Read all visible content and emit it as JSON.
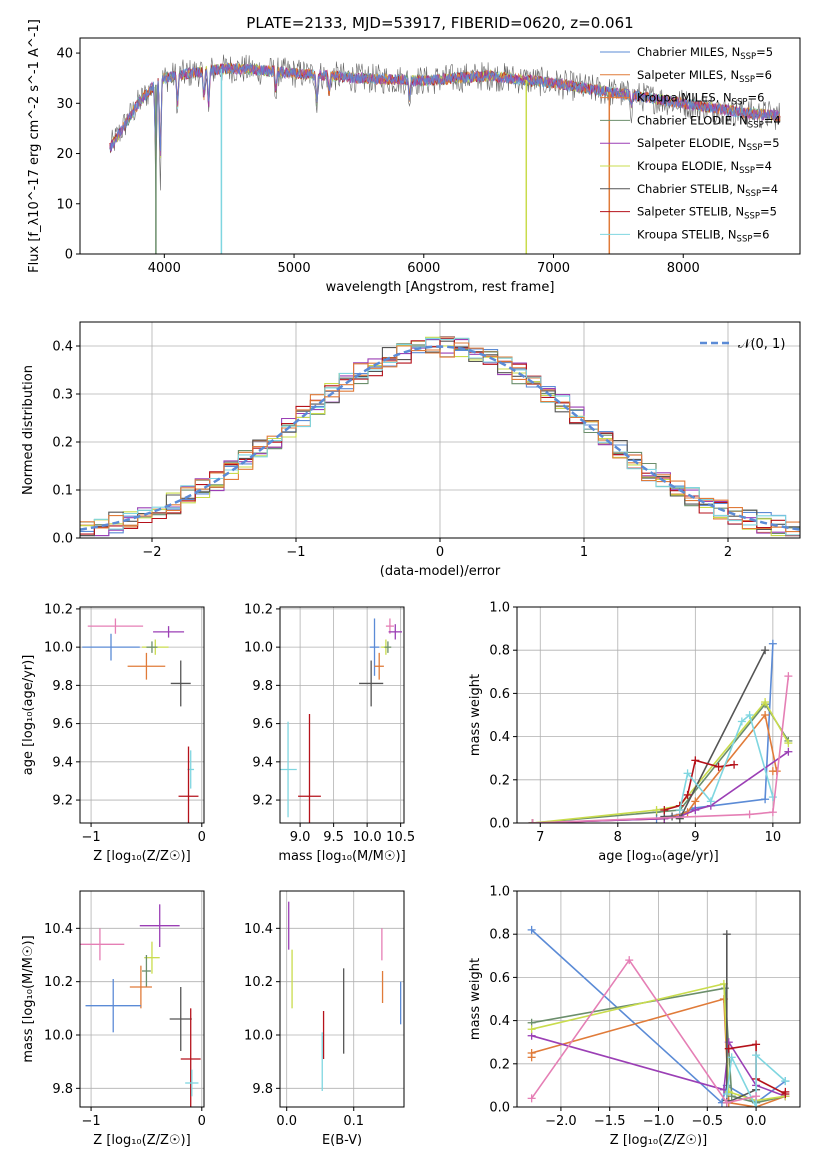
{
  "figure": {
    "title": "PLATE=2133, MJD=53917, FIBERID=0620, z=0.061"
  },
  "colors": {
    "cMILES": "#5b8bd6",
    "sMILES": "#e07b39",
    "kMILES": "#f5a35c",
    "cELODIE": "#6b8e6b",
    "sELODIE": "#9b3fb5",
    "kELODIE": "#c9dc4c",
    "cSTELIB": "#555555",
    "sSTELIB": "#b5121b",
    "kSTELIB": "#7fd6e0",
    "pink": "#e57fb5",
    "blue": "#5b8bd6",
    "orange": "#e07b39",
    "green": "#6b8e6b",
    "purple": "#9b3fb5",
    "yellowgreen": "#c9dc4c",
    "grey": "#555555",
    "red": "#b5121b",
    "cyan": "#7fd6e0"
  },
  "chart_data": [
    {
      "id": "spectrum",
      "type": "line",
      "xlabel": "wavelength [Angstrom, rest frame]",
      "ylabel": "Flux [f_λ10^-17 erg cm^-2 s^-1 A^-1]",
      "xlim": [
        3350,
        8900
      ],
      "ylim": [
        0,
        43
      ],
      "xticks": [
        4000,
        5000,
        6000,
        7000,
        8000
      ],
      "yticks": [
        0,
        10,
        20,
        30,
        40
      ],
      "grid": false,
      "legend_position": "top-right",
      "legend": [
        {
          "label": "Chabrier MILES, N",
          "sub": "SSP",
          "tail": "=5",
          "color": "#5b8bd6"
        },
        {
          "label": "Salpeter MILES, N",
          "sub": "SSP",
          "tail": "=6",
          "color": "#e07b39"
        },
        {
          "label": "Kroupa MILES, N",
          "sub": "SSP",
          "tail": "=6",
          "color": "#e07b39"
        },
        {
          "label": "Chabrier ELODIE, N",
          "sub": "SSP",
          "tail": "=4",
          "color": "#6b8e6b"
        },
        {
          "label": "Salpeter ELODIE, N",
          "sub": "SSP",
          "tail": "=5",
          "color": "#9b3fb5"
        },
        {
          "label": "Kroupa ELODIE, N",
          "sub": "SSP",
          "tail": "=4",
          "color": "#c9dc4c"
        },
        {
          "label": "Chabrier STELIB, N",
          "sub": "SSP",
          "tail": "=4",
          "color": "#555555"
        },
        {
          "label": "Salpeter STELIB, N",
          "sub": "SSP",
          "tail": "=5",
          "color": "#b5121b"
        },
        {
          "label": "Kroupa STELIB, N",
          "sub": "SSP",
          "tail": "=6",
          "color": "#7fd6e0"
        }
      ],
      "continuum": [
        [
          3580,
          21
        ],
        [
          3700,
          26
        ],
        [
          3800,
          30
        ],
        [
          3900,
          33
        ],
        [
          4000,
          35
        ],
        [
          4200,
          36
        ],
        [
          4500,
          37
        ],
        [
          5000,
          36
        ],
        [
          5500,
          35
        ],
        [
          6000,
          34.5
        ],
        [
          6500,
          35.5
        ],
        [
          7000,
          34
        ],
        [
          7500,
          32
        ],
        [
          8000,
          30
        ],
        [
          8500,
          28
        ],
        [
          8750,
          27.5
        ]
      ],
      "absorption_lines": [
        [
          3934,
          20
        ],
        [
          3969,
          22
        ],
        [
          4102,
          8
        ],
        [
          4304,
          8
        ],
        [
          4341,
          10
        ],
        [
          4861,
          6
        ],
        [
          5175,
          8
        ],
        [
          5270,
          5
        ],
        [
          5890,
          5
        ],
        [
          7600,
          3
        ]
      ],
      "spikes": [
        [
          3935,
          0
        ],
        [
          4440,
          0
        ],
        [
          6790,
          0
        ],
        [
          7430,
          0
        ]
      ]
    },
    {
      "id": "residuals",
      "type": "line",
      "xlabel": "(data-model)/error",
      "ylabel": "Normed distribution",
      "xlim": [
        -2.5,
        2.5
      ],
      "ylim": [
        0,
        0.45
      ],
      "xticks": [
        -2,
        -1,
        0,
        1,
        2
      ],
      "yticks": [
        0,
        0.1,
        0.2,
        0.3,
        0.4
      ],
      "grid": true,
      "legend_position": "top-right",
      "legend": [
        {
          "label": "𝒩(0, 1)",
          "color": "#5b8bd6"
        }
      ],
      "series_colors": [
        "#5b8bd6",
        "#e07b39",
        "#6b8e6b",
        "#9b3fb5",
        "#c9dc4c",
        "#555555",
        "#b5121b",
        "#7fd6e0",
        "#e07b39"
      ],
      "bin_width": 0.1
    },
    {
      "id": "age_vs_Z",
      "type": "scatter",
      "xlabel": "Z [log₁₀(Z/Z☉)]",
      "ylabel": "age  [log₁₀(age/yr)]",
      "xlim": [
        -1.1,
        0.02
      ],
      "ylim": [
        9.08,
        10.21
      ],
      "xticks": [
        -1,
        0
      ],
      "yticks": [
        9.2,
        9.4,
        9.6,
        9.8,
        10.0,
        10.2
      ],
      "grid": true,
      "points": [
        {
          "x": -0.78,
          "y": 10.11,
          "xerr": 0.25,
          "yerr": 0.04,
          "color": "#e57fb5"
        },
        {
          "x": -0.82,
          "y": 10.0,
          "xerr": 0.26,
          "yerr": 0.07,
          "color": "#5b8bd6"
        },
        {
          "x": -0.3,
          "y": 10.08,
          "xerr": 0.14,
          "yerr": 0.03,
          "color": "#9b3fb5"
        },
        {
          "x": -0.42,
          "y": 10.0,
          "xerr": 0.12,
          "yerr": 0.04,
          "color": "#c9dc4c"
        },
        {
          "x": -0.45,
          "y": 10.0,
          "xerr": 0.05,
          "yerr": 0.03,
          "color": "#6b8e6b"
        },
        {
          "x": -0.5,
          "y": 9.9,
          "xerr": 0.17,
          "yerr": 0.07,
          "color": "#e07b39"
        },
        {
          "x": -0.19,
          "y": 9.81,
          "xerr": 0.09,
          "yerr": 0.12,
          "color": "#555555"
        },
        {
          "x": -0.1,
          "y": 9.36,
          "xerr": 0.03,
          "yerr": 0.1,
          "color": "#7fd6e0"
        },
        {
          "x": -0.12,
          "y": 9.22,
          "xerr": 0.09,
          "yerr": 0.26,
          "color": "#b5121b"
        }
      ]
    },
    {
      "id": "age_vs_mass",
      "type": "scatter",
      "xlabel": "mass [log₁₀(M/M☉)]",
      "ylabel": "",
      "xlim": [
        8.7,
        10.55
      ],
      "ylim": [
        9.08,
        10.21
      ],
      "xticks": [
        9.0,
        9.5,
        10.0,
        10.5
      ],
      "yticks": [
        9.2,
        9.4,
        9.6,
        9.8,
        10.0,
        10.2
      ],
      "grid": true,
      "points": [
        {
          "x": 10.34,
          "y": 10.11,
          "xerr": 0.06,
          "yerr": 0.04,
          "color": "#e57fb5"
        },
        {
          "x": 10.11,
          "y": 10.0,
          "xerr": 0.07,
          "yerr": 0.15,
          "color": "#5b8bd6"
        },
        {
          "x": 10.42,
          "y": 10.08,
          "xerr": 0.1,
          "yerr": 0.04,
          "color": "#9b3fb5"
        },
        {
          "x": 10.28,
          "y": 10.0,
          "xerr": 0.07,
          "yerr": 0.04,
          "color": "#c9dc4c"
        },
        {
          "x": 10.31,
          "y": 10.0,
          "xerr": 0.05,
          "yerr": 0.03,
          "color": "#6b8e6b"
        },
        {
          "x": 10.18,
          "y": 9.9,
          "xerr": 0.07,
          "yerr": 0.07,
          "color": "#e07b39"
        },
        {
          "x": 10.06,
          "y": 9.81,
          "xerr": 0.18,
          "yerr": 0.12,
          "color": "#555555"
        },
        {
          "x": 8.82,
          "y": 9.36,
          "xerr": 0.13,
          "yerr": 0.25,
          "color": "#7fd6e0"
        },
        {
          "x": 9.14,
          "y": 9.22,
          "xerr": 0.17,
          "yerr": 0.43,
          "color": "#b5121b"
        }
      ]
    },
    {
      "id": "weight_vs_age",
      "type": "line",
      "xlabel": "age  [log₁₀(age/yr)]",
      "ylabel": "mass weight",
      "xlim": [
        6.7,
        10.35
      ],
      "ylim": [
        0,
        1.0
      ],
      "xticks": [
        7,
        8,
        9,
        10
      ],
      "yticks": [
        0.0,
        0.2,
        0.4,
        0.6,
        0.8,
        1.0
      ],
      "grid": true,
      "series": [
        {
          "color": "#5b8bd6",
          "x": [
            6.9,
            8.5,
            8.8,
            9.0,
            9.9,
            10.0
          ],
          "y": [
            0.0,
            0.02,
            0.04,
            0.07,
            0.11,
            0.83
          ]
        },
        {
          "color": "#e07b39",
          "x": [
            6.9,
            8.6,
            8.9,
            9.0,
            9.9,
            10.05,
            10.0
          ],
          "y": [
            0.0,
            0.02,
            0.05,
            0.1,
            0.5,
            0.24,
            0.24
          ]
        },
        {
          "color": "#6b8e6b",
          "x": [
            6.9,
            8.5,
            8.8,
            9.9,
            10.2
          ],
          "y": [
            0.0,
            0.05,
            0.06,
            0.55,
            0.38
          ]
        },
        {
          "color": "#9b3fb5",
          "x": [
            6.9,
            8.6,
            8.8,
            9.0,
            9.2,
            10.2
          ],
          "y": [
            0.0,
            0.02,
            0.03,
            0.06,
            0.08,
            0.33
          ]
        },
        {
          "color": "#c9dc4c",
          "x": [
            6.9,
            8.5,
            8.8,
            9.9,
            10.2
          ],
          "y": [
            0.0,
            0.06,
            0.08,
            0.56,
            0.37
          ]
        },
        {
          "color": "#555555",
          "x": [
            8.6,
            8.7,
            8.8,
            9.9
          ],
          "y": [
            0.03,
            0.03,
            0.02,
            0.8
          ]
        },
        {
          "color": "#b5121b",
          "x": [
            8.6,
            8.8,
            8.9,
            9.0,
            9.3,
            9.5
          ],
          "y": [
            0.06,
            0.08,
            0.13,
            0.29,
            0.26,
            0.27
          ]
        },
        {
          "color": "#7fd6e0",
          "x": [
            8.8,
            8.9,
            9.2,
            9.6,
            9.7,
            10.0
          ],
          "y": [
            0.06,
            0.23,
            0.1,
            0.47,
            0.5,
            0.12
          ]
        },
        {
          "color": "#e57fb5",
          "x": [
            6.9,
            9.7,
            10.0,
            10.2
          ],
          "y": [
            0.0,
            0.04,
            0.05,
            0.68
          ]
        }
      ]
    },
    {
      "id": "mass_vs_Z",
      "type": "scatter",
      "xlabel": "Z [log₁₀(Z/Z☉)]",
      "ylabel": "mass [log₁₀(M/M☉)]",
      "xlim": [
        -1.1,
        0.02
      ],
      "ylim": [
        9.73,
        10.54
      ],
      "xticks": [
        -1,
        0
      ],
      "yticks": [
        9.8,
        10.0,
        10.2,
        10.4
      ],
      "grid": true,
      "points": [
        {
          "x": -0.38,
          "y": 10.41,
          "xerr": 0.18,
          "yerr": 0.08,
          "color": "#9b3fb5"
        },
        {
          "x": -0.92,
          "y": 10.34,
          "xerr": 0.22,
          "yerr": 0.06,
          "color": "#e57fb5"
        },
        {
          "x": -0.45,
          "y": 10.29,
          "xerr": 0.07,
          "yerr": 0.06,
          "color": "#c9dc4c"
        },
        {
          "x": -0.5,
          "y": 10.24,
          "xerr": 0.04,
          "yerr": 0.06,
          "color": "#6b8e6b"
        },
        {
          "x": -0.55,
          "y": 10.18,
          "xerr": 0.1,
          "yerr": 0.08,
          "color": "#e07b39"
        },
        {
          "x": -0.8,
          "y": 10.11,
          "xerr": 0.25,
          "yerr": 0.1,
          "color": "#5b8bd6"
        },
        {
          "x": -0.19,
          "y": 10.06,
          "xerr": 0.1,
          "yerr": 0.12,
          "color": "#555555"
        },
        {
          "x": -0.1,
          "y": 9.91,
          "xerr": 0.09,
          "yerr": 0.19,
          "color": "#b5121b"
        },
        {
          "x": -0.09,
          "y": 9.82,
          "xerr": 0.06,
          "yerr": 0.05,
          "color": "#7fd6e0"
        }
      ]
    },
    {
      "id": "mass_vs_EBV",
      "type": "scatter",
      "xlabel": "E(B-V)",
      "ylabel": "",
      "xlim": [
        -0.01,
        0.175
      ],
      "ylim": [
        9.73,
        10.54
      ],
      "xticks": [
        0.0,
        0.1
      ],
      "yticks": [
        9.8,
        10.0,
        10.2,
        10.4
      ],
      "grid": true,
      "points": [
        {
          "x": 0.003,
          "y": 10.41,
          "xerr": 0,
          "yerr": 0.09,
          "color": "#9b3fb5"
        },
        {
          "x": 0.142,
          "y": 10.34,
          "xerr": 0,
          "yerr": 0.06,
          "color": "#e57fb5"
        },
        {
          "x": 0.008,
          "y": 10.21,
          "xerr": 0,
          "yerr": 0.11,
          "color": "#c9dc4c"
        },
        {
          "x": 0.143,
          "y": 10.18,
          "xerr": 0,
          "yerr": 0.06,
          "color": "#e07b39"
        },
        {
          "x": 0.17,
          "y": 10.12,
          "xerr": 0,
          "yerr": 0.08,
          "color": "#5b8bd6"
        },
        {
          "x": 0.085,
          "y": 10.09,
          "xerr": 0,
          "yerr": 0.16,
          "color": "#555555"
        },
        {
          "x": 0.055,
          "y": 10.0,
          "xerr": 0,
          "yerr": 0.09,
          "color": "#b5121b"
        },
        {
          "x": 0.053,
          "y": 9.9,
          "xerr": 0,
          "yerr": 0.11,
          "color": "#7fd6e0"
        }
      ]
    },
    {
      "id": "weight_vs_Z",
      "type": "line",
      "xlabel": "Z [log₁₀(Z/Z☉)]",
      "ylabel": "mass weight",
      "xlim": [
        -2.45,
        0.45
      ],
      "ylim": [
        0,
        1.0
      ],
      "xticks": [
        -2.0,
        -1.5,
        -1.0,
        -0.5,
        0.0
      ],
      "yticks": [
        0.0,
        0.2,
        0.4,
        0.6,
        0.8,
        1.0
      ],
      "grid": true,
      "series": [
        {
          "color": "#5b8bd6",
          "x": [
            -2.3,
            -0.35,
            -0.3,
            0.0,
            0.3
          ],
          "y": [
            0.82,
            0.02,
            0.1,
            0.02,
            0.12
          ]
        },
        {
          "color": "#e07b39",
          "x": [
            -2.3,
            -2.3,
            -0.33,
            -0.28,
            0.0,
            0.3
          ],
          "y": [
            0.23,
            0.25,
            0.5,
            0.02,
            0.0,
            0.05
          ]
        },
        {
          "color": "#6b8e6b",
          "x": [
            -2.3,
            -0.32,
            -0.25,
            0.0,
            0.3
          ],
          "y": [
            0.39,
            0.55,
            0.05,
            0.02,
            0.05
          ]
        },
        {
          "color": "#9b3fb5",
          "x": [
            -2.3,
            -0.33,
            -0.28,
            0.0,
            0.3
          ],
          "y": [
            0.33,
            0.08,
            0.3,
            0.1,
            0.05
          ]
        },
        {
          "color": "#c9dc4c",
          "x": [
            -2.3,
            -0.33,
            -0.28,
            0.0,
            0.3
          ],
          "y": [
            0.36,
            0.57,
            0.07,
            0.03,
            0.05
          ]
        },
        {
          "color": "#555555",
          "x": [
            -0.3,
            -0.3,
            -0.3,
            0.0
          ],
          "y": [
            0.8,
            0.03,
            0.02,
            0.08
          ]
        },
        {
          "color": "#b5121b",
          "x": [
            -0.28,
            0.0,
            0.0,
            0.3,
            0.3
          ],
          "y": [
            0.27,
            0.29,
            0.13,
            0.06,
            0.07
          ]
        },
        {
          "color": "#7fd6e0",
          "x": [
            -0.3,
            -0.25,
            0.0,
            0.0,
            0.3
          ],
          "y": [
            0.06,
            0.23,
            0.0,
            0.24,
            0.12
          ]
        },
        {
          "color": "#e57fb5",
          "x": [
            -2.3,
            -1.3,
            -0.3,
            0.0
          ],
          "y": [
            0.04,
            0.68,
            0.02,
            0.05
          ]
        }
      ]
    }
  ]
}
